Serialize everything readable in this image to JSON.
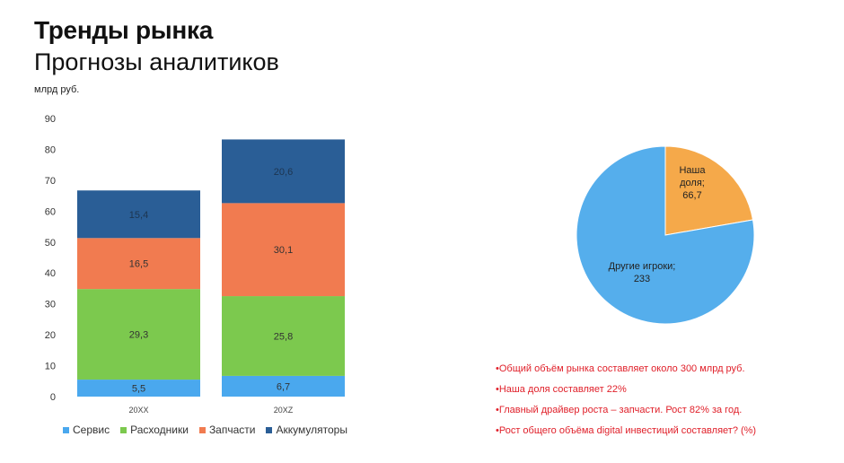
{
  "header": {
    "title": "Тренды рынка",
    "subtitle": "Прогнозы аналитиков",
    "unit": "млрд руб."
  },
  "chart_data": [
    {
      "type": "bar",
      "stacked": true,
      "categories": [
        "20XX",
        "20XZ"
      ],
      "series": [
        {
          "name": "Сервис",
          "values": [
            5.5,
            6.7
          ],
          "labels": [
            "5,5",
            "6,7"
          ],
          "color": "#4aa8ee"
        },
        {
          "name": "Расходники",
          "values": [
            29.3,
            25.8
          ],
          "labels": [
            "29,3",
            "25,8"
          ],
          "color": "#7cc94e"
        },
        {
          "name": "Запчасти",
          "values": [
            16.5,
            30.1
          ],
          "labels": [
            "16,5",
            "30,1"
          ],
          "color": "#f17b50"
        },
        {
          "name": "Аккумуляторы",
          "values": [
            15.4,
            20.6
          ],
          "labels": [
            "15,4",
            "20,6"
          ],
          "color": "#2a5e96"
        }
      ],
      "ylim": [
        0,
        90
      ],
      "yticks": [
        "0",
        "10",
        "20",
        "30",
        "40",
        "50",
        "60",
        "70",
        "80",
        "90"
      ],
      "grid": false,
      "legend": "bottom"
    },
    {
      "type": "pie",
      "slices": [
        {
          "label_lines": [
            "Наша",
            "доля;",
            "66,7"
          ],
          "value": 66.7,
          "color": "#f5a94a"
        },
        {
          "label_lines": [
            "Другие игроки;",
            "233"
          ],
          "value": 233,
          "color": "#55aeec"
        }
      ]
    }
  ],
  "bullets": [
    "•Общий объём рынка составляет около 300 млрд руб.",
    "•Наша доля составляет 22%",
    "•Главный драйвер роста – запчасти. Рост 82% за год.",
    "•Рост общего объёма digital инвестиций составляет? (%)"
  ]
}
